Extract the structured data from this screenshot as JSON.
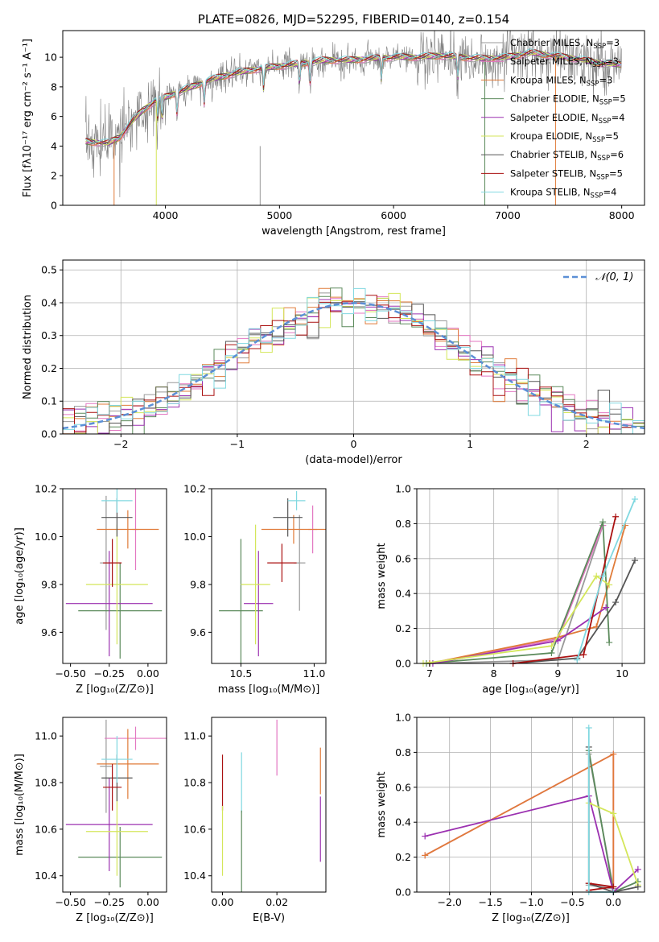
{
  "colors": {
    "chabrier_miles": "#999999",
    "salpeter_miles": "#e377c2",
    "kroupa_miles": "#e07b39",
    "chabrier_elodie": "#5b8a5b",
    "salpeter_elodie": "#9b30b0",
    "kroupa_elodie": "#d4e65a",
    "chabrier_stelib": "#555555",
    "salpeter_stelib": "#aa1111",
    "kroupa_stelib": "#80d8e0",
    "gauss": "#5b8fd6"
  },
  "chart_data": [
    {
      "id": "spectrum",
      "type": "line",
      "title": "PLATE=0826, MJD=52295, FIBERID=0140, z=0.154",
      "xlabel": "wavelength [Angstrom, rest frame]",
      "ylabel": "Flux [fλ10⁻¹⁷ erg cm⁻² s⁻¹ A⁻¹]",
      "xlim": [
        3100,
        8200
      ],
      "ylim": [
        0,
        11.8
      ],
      "xticks": [
        4000,
        5000,
        6000,
        7000,
        8000
      ],
      "yticks": [
        0,
        2,
        4,
        6,
        8,
        10
      ],
      "legend": {
        "position": "top-right",
        "entries": [
          {
            "name": "Chabrier MILES, N",
            "sub": "SSP",
            "suffix": "=3",
            "color": "chabrier_miles"
          },
          {
            "name": "Salpeter MILES, N",
            "sub": "SSP",
            "suffix": "=3",
            "color": "salpeter_miles"
          },
          {
            "name": "Kroupa MILES, N",
            "sub": "SSP",
            "suffix": "=3",
            "color": "kroupa_miles"
          },
          {
            "name": "Chabrier ELODIE, N",
            "sub": "SSP",
            "suffix": "=5",
            "color": "chabrier_elodie"
          },
          {
            "name": "Salpeter ELODIE, N",
            "sub": "SSP",
            "suffix": "=4",
            "color": "salpeter_elodie"
          },
          {
            "name": "Kroupa ELODIE, N",
            "sub": "SSP",
            "suffix": "=5",
            "color": "kroupa_elodie"
          },
          {
            "name": "Chabrier STELIB, N",
            "sub": "SSP",
            "suffix": "=6",
            "color": "chabrier_stelib"
          },
          {
            "name": "Salpeter STELIB, N",
            "sub": "SSP",
            "suffix": "=5",
            "color": "salpeter_stelib"
          },
          {
            "name": "Kroupa STELIB, N",
            "sub": "SSP",
            "suffix": "=4",
            "color": "kroupa_stelib"
          }
        ]
      },
      "continuum": {
        "x": [
          3300,
          3500,
          3600,
          3700,
          3800,
          3900,
          4000,
          4200,
          4400,
          4600,
          4800,
          5000,
          5200,
          5400,
          5600,
          5800,
          6000,
          6200,
          6400,
          6600,
          6800,
          7000,
          7200,
          7400,
          7600,
          7800,
          8000
        ],
        "y": [
          4.3,
          4.2,
          4.6,
          5.6,
          6.4,
          7.0,
          7.3,
          7.9,
          8.5,
          8.9,
          9.2,
          9.4,
          9.6,
          9.8,
          9.8,
          9.9,
          10.0,
          10.0,
          10.1,
          10.0,
          9.9,
          10.0,
          10.3,
          10.1,
          9.9,
          9.6,
          9.5
        ]
      }
    },
    {
      "id": "residuals",
      "type": "histogram",
      "xlabel": "(data-model)/error",
      "ylabel": "Normed distribution",
      "xlim": [
        -2.5,
        2.5
      ],
      "ylim": [
        0,
        0.53
      ],
      "xticks": [
        -2,
        -1,
        0,
        1,
        2
      ],
      "yticks": [
        0.0,
        0.1,
        0.2,
        0.3,
        0.4,
        0.5
      ],
      "grid": true,
      "legend": {
        "position": "top-right",
        "label": "𝒩(0, 1)"
      },
      "bin_width": 0.1
    },
    {
      "id": "z_age",
      "type": "errorbar",
      "xlabel": "Z [log₁₀(Z/Z⊙)]",
      "ylabel": "age  [log₁₀(age/yr)]",
      "xlim": [
        -0.55,
        0.12
      ],
      "ylim": [
        9.47,
        10.2
      ],
      "xticks": [
        -0.5,
        -0.25,
        0.0
      ],
      "yticks": [
        9.6,
        9.8,
        10.0,
        10.2
      ],
      "points": [
        {
          "x": -0.27,
          "y": 9.89,
          "xerr": 0.04,
          "yerr": 0.28,
          "color": "chabrier_miles"
        },
        {
          "x": -0.08,
          "y": 10.03,
          "xerr": 0.02,
          "yerr": 0.17,
          "color": "salpeter_miles"
        },
        {
          "x": -0.13,
          "y": 10.03,
          "xerr": 0.2,
          "yerr": 0.08,
          "color": "kroupa_miles"
        },
        {
          "x": -0.18,
          "y": 9.69,
          "xerr": 0.27,
          "yerr": 0.2,
          "color": "chabrier_elodie"
        },
        {
          "x": -0.25,
          "y": 9.72,
          "xerr": 0.28,
          "yerr": 0.22,
          "color": "salpeter_elodie"
        },
        {
          "x": -0.2,
          "y": 9.8,
          "xerr": 0.2,
          "yerr": 0.25,
          "color": "kroupa_elodie"
        },
        {
          "x": -0.2,
          "y": 10.08,
          "xerr": 0.1,
          "yerr": 0.08,
          "color": "chabrier_stelib"
        },
        {
          "x": -0.23,
          "y": 9.89,
          "xerr": 0.06,
          "yerr": 0.1,
          "color": "salpeter_stelib"
        },
        {
          "x": -0.2,
          "y": 10.15,
          "xerr": 0.1,
          "yerr": 0.05,
          "color": "kroupa_stelib"
        }
      ]
    },
    {
      "id": "mass_age",
      "type": "errorbar",
      "xlabel": "mass [log₁₀(M/M⊙)]",
      "ylabel": "",
      "xlim": [
        10.3,
        11.08
      ],
      "ylim": [
        9.47,
        10.2
      ],
      "xticks": [
        10.5,
        11.0
      ],
      "yticks": [
        9.6,
        9.8,
        10.0,
        10.2
      ],
      "points": [
        {
          "x": 10.9,
          "y": 9.89,
          "xerr": 0.04,
          "yerr": 0.2,
          "color": "chabrier_miles"
        },
        {
          "x": 10.99,
          "y": 10.03,
          "xerr": 0.03,
          "yerr": 0.1,
          "color": "salpeter_miles"
        },
        {
          "x": 10.86,
          "y": 10.03,
          "xerr": 0.22,
          "yerr": 0.06,
          "color": "kroupa_miles"
        },
        {
          "x": 10.5,
          "y": 9.69,
          "xerr": 0.15,
          "yerr": 0.3,
          "color": "chabrier_elodie"
        },
        {
          "x": 10.62,
          "y": 9.72,
          "xerr": 0.1,
          "yerr": 0.22,
          "color": "salpeter_elodie"
        },
        {
          "x": 10.6,
          "y": 9.8,
          "xerr": 0.1,
          "yerr": 0.25,
          "color": "kroupa_elodie"
        },
        {
          "x": 10.82,
          "y": 10.08,
          "xerr": 0.1,
          "yerr": 0.08,
          "color": "chabrier_stelib"
        },
        {
          "x": 10.78,
          "y": 9.89,
          "xerr": 0.1,
          "yerr": 0.08,
          "color": "salpeter_stelib"
        },
        {
          "x": 10.88,
          "y": 10.15,
          "xerr": 0.06,
          "yerr": 0.04,
          "color": "kroupa_stelib"
        }
      ]
    },
    {
      "id": "age_weight",
      "type": "line",
      "xlabel": "age  [log₁₀(age/yr)]",
      "ylabel": "mass weight",
      "xlim": [
        6.8,
        10.35
      ],
      "ylim": [
        0,
        1.0
      ],
      "xticks": [
        7,
        8,
        9,
        10
      ],
      "yticks": [
        0.0,
        0.2,
        0.4,
        0.6,
        0.8,
        1.0
      ],
      "grid": true,
      "series": [
        {
          "color": "chabrier_miles",
          "x": [
            7.0,
            9.0,
            9.7
          ],
          "y": [
            0.0,
            0.02,
            0.79
          ]
        },
        {
          "color": "salpeter_miles",
          "x": [
            7.0,
            9.0,
            9.7
          ],
          "y": [
            0.0,
            0.14,
            0.79
          ]
        },
        {
          "color": "kroupa_miles",
          "x": [
            7.0,
            9.0,
            9.6,
            10.05
          ],
          "y": [
            0.0,
            0.15,
            0.21,
            0.79
          ]
        },
        {
          "color": "chabrier_elodie",
          "x": [
            6.95,
            8.9,
            9.7,
            9.8
          ],
          "y": [
            0.0,
            0.06,
            0.81,
            0.12
          ]
        },
        {
          "color": "salpeter_elodie",
          "x": [
            7.05,
            9.0,
            9.75
          ],
          "y": [
            0.0,
            0.13,
            0.32
          ]
        },
        {
          "color": "kroupa_elodie",
          "x": [
            6.9,
            8.9,
            9.6,
            9.8
          ],
          "y": [
            0.0,
            0.1,
            0.5,
            0.45
          ]
        },
        {
          "color": "chabrier_stelib",
          "x": [
            8.3,
            9.3,
            9.9,
            10.2
          ],
          "y": [
            0.0,
            0.03,
            0.35,
            0.59
          ]
        },
        {
          "color": "salpeter_stelib",
          "x": [
            8.3,
            9.4,
            9.9
          ],
          "y": [
            0.0,
            0.05,
            0.84
          ]
        },
        {
          "color": "kroupa_stelib",
          "x": [
            9.3,
            9.7,
            10.2
          ],
          "y": [
            0.02,
            0.5,
            0.94
          ]
        }
      ]
    },
    {
      "id": "z_mass",
      "type": "errorbar",
      "xlabel": "Z [log₁₀(Z/Z⊙)]",
      "ylabel": "mass [log₁₀(M/M⊙)]",
      "xlim": [
        -0.55,
        0.12
      ],
      "ylim": [
        10.33,
        11.08
      ],
      "xticks": [
        -0.5,
        -0.25,
        0.0
      ],
      "yticks": [
        10.4,
        10.6,
        10.8,
        11.0
      ],
      "points": [
        {
          "x": -0.27,
          "y": 10.87,
          "xerr": 0.04,
          "yerr": 0.2,
          "color": "chabrier_miles"
        },
        {
          "x": -0.08,
          "y": 10.99,
          "xerr": 0.2,
          "yerr": 0.05,
          "color": "salpeter_miles"
        },
        {
          "x": -0.13,
          "y": 10.88,
          "xerr": 0.2,
          "yerr": 0.15,
          "color": "kroupa_miles"
        },
        {
          "x": -0.18,
          "y": 10.48,
          "xerr": 0.27,
          "yerr": 0.13,
          "color": "chabrier_elodie"
        },
        {
          "x": -0.25,
          "y": 10.62,
          "xerr": 0.28,
          "yerr": 0.2,
          "color": "salpeter_elodie"
        },
        {
          "x": -0.2,
          "y": 10.59,
          "xerr": 0.2,
          "yerr": 0.19,
          "color": "kroupa_elodie"
        },
        {
          "x": -0.2,
          "y": 10.82,
          "xerr": 0.1,
          "yerr": 0.1,
          "color": "chabrier_stelib"
        },
        {
          "x": -0.23,
          "y": 10.78,
          "xerr": 0.06,
          "yerr": 0.1,
          "color": "salpeter_stelib"
        },
        {
          "x": -0.2,
          "y": 10.9,
          "xerr": 0.1,
          "yerr": 0.1,
          "color": "kroupa_stelib"
        }
      ]
    },
    {
      "id": "ebv_mass",
      "type": "errorbar",
      "xlabel": "E(B-V)",
      "ylabel": "",
      "xlim": [
        -0.004,
        0.038
      ],
      "ylim": [
        10.33,
        11.08
      ],
      "xticks": [
        0.0,
        0.02
      ],
      "yticks": [
        10.4,
        10.6,
        10.8,
        11.0
      ],
      "points": [
        {
          "x": 0.0,
          "y": 10.8,
          "xerr": 0,
          "yerr": 0.12,
          "color": "salpeter_stelib"
        },
        {
          "x": 0.0,
          "y": 10.55,
          "xerr": 0,
          "yerr": 0.15,
          "color": "kroupa_elodie"
        },
        {
          "x": 0.007,
          "y": 10.8,
          "xerr": 0,
          "yerr": 0.13,
          "color": "kroupa_stelib"
        },
        {
          "x": 0.007,
          "y": 10.5,
          "xerr": 0,
          "yerr": 0.18,
          "color": "chabrier_elodie"
        },
        {
          "x": 0.02,
          "y": 10.95,
          "xerr": 0,
          "yerr": 0.12,
          "color": "salpeter_miles"
        },
        {
          "x": 0.036,
          "y": 10.85,
          "xerr": 0,
          "yerr": 0.1,
          "color": "kroupa_miles"
        },
        {
          "x": 0.036,
          "y": 10.6,
          "xerr": 0,
          "yerr": 0.14,
          "color": "salpeter_elodie"
        }
      ]
    },
    {
      "id": "z_weight",
      "type": "line",
      "xlabel": "Z [log₁₀(Z/Z⊙)]",
      "ylabel": "mass weight",
      "xlim": [
        -2.4,
        0.38
      ],
      "ylim": [
        0,
        1.0
      ],
      "xticks": [
        -2.0,
        -1.5,
        -1.0,
        -0.5,
        0.0
      ],
      "yticks": [
        0.0,
        0.2,
        0.4,
        0.6,
        0.8,
        1.0
      ],
      "grid": true,
      "series": [
        {
          "color": "chabrier_miles",
          "x": [
            -0.3,
            0.0,
            -0.3
          ],
          "y": [
            0.79,
            0.02,
            0.04
          ]
        },
        {
          "color": "salpeter_miles",
          "x": [
            -2.3,
            0.0,
            0.0
          ],
          "y": [
            0.21,
            0.79,
            0.03
          ]
        },
        {
          "color": "kroupa_miles",
          "x": [
            -2.3,
            0.0,
            0.0
          ],
          "y": [
            0.21,
            0.79,
            0.0
          ]
        },
        {
          "color": "chabrier_elodie",
          "x": [
            -0.3,
            0.0,
            0.3
          ],
          "y": [
            0.81,
            0.0,
            0.06
          ]
        },
        {
          "color": "salpeter_elodie",
          "x": [
            -2.3,
            -0.3,
            0.0,
            0.3
          ],
          "y": [
            0.32,
            0.55,
            0.0,
            0.13
          ]
        },
        {
          "color": "kroupa_elodie",
          "x": [
            -0.3,
            0.0,
            0.3
          ],
          "y": [
            0.51,
            0.45,
            0.04
          ]
        },
        {
          "color": "chabrier_stelib",
          "x": [
            -0.3,
            -0.3,
            0.0,
            0.3
          ],
          "y": [
            0.83,
            0.05,
            0.0,
            0.03
          ]
        },
        {
          "color": "salpeter_stelib",
          "x": [
            -0.3,
            0.0,
            -0.3
          ],
          "y": [
            0.05,
            0.03,
            0.01
          ]
        },
        {
          "color": "kroupa_stelib",
          "x": [
            -0.3,
            -0.3,
            0.0
          ],
          "y": [
            0.94,
            0.0,
            0.0
          ]
        }
      ]
    }
  ]
}
